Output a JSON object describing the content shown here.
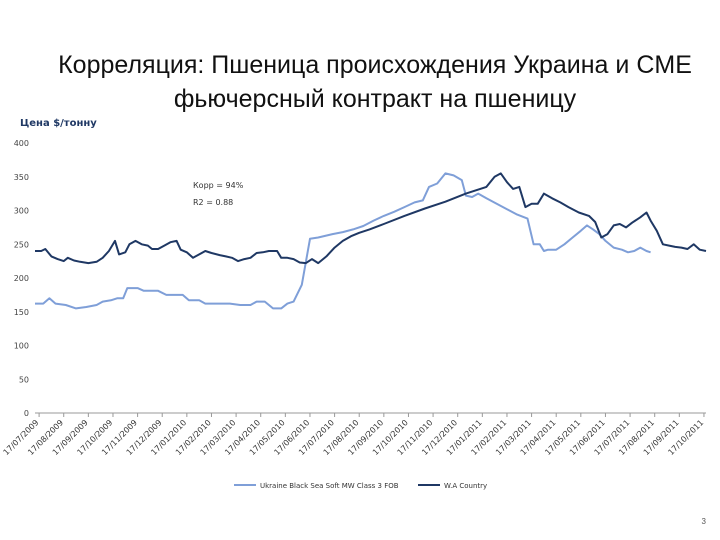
{
  "slide": {
    "title": "Корреляция: Пшеница происхождения Украина и CME фьючерсный контракт на пшеницу",
    "page_number": "3"
  },
  "chart_data": {
    "type": "line",
    "title": "",
    "ylabel": "Цена $/тонну",
    "xlabel": "",
    "ylim": [
      0,
      400
    ],
    "yticks": [
      0,
      50,
      100,
      150,
      200,
      250,
      300,
      350,
      400
    ],
    "grid": false,
    "legend_position": "bottom",
    "annotations": [
      "Корр = 94%",
      "R2 = 0.88"
    ],
    "xtick_labels": [
      "17/07/2009",
      "17/08/2009",
      "17/09/2009",
      "17/10/2009",
      "17/11/2009",
      "17/12/2009",
      "17/01/2010",
      "17/02/2010",
      "17/03/2010",
      "17/04/2010",
      "17/05/2010",
      "17/06/2010",
      "17/07/2010",
      "17/08/2010",
      "17/09/2010",
      "17/10/2010",
      "17/11/2010",
      "17/12/2010",
      "17/01/2011",
      "17/02/2011",
      "17/03/2011",
      "17/04/2011",
      "17/05/2011",
      "17/06/2011",
      "17/07/2011",
      "17/08/2011",
      "17/09/2011",
      "17/10/2011"
    ],
    "series": [
      {
        "name": "Ukraine Black Sea Soft MW Class 3 FOB",
        "color": "#7f9fd8",
        "points": [
          [
            0,
            162
          ],
          [
            0.4,
            162
          ],
          [
            0.7,
            170
          ],
          [
            1.0,
            162
          ],
          [
            1.5,
            160
          ],
          [
            2.0,
            155
          ],
          [
            2.5,
            157
          ],
          [
            3.0,
            160
          ],
          [
            3.3,
            165
          ],
          [
            3.7,
            167
          ],
          [
            4.0,
            170
          ],
          [
            4.3,
            170
          ],
          [
            4.5,
            185
          ],
          [
            5.0,
            185
          ],
          [
            5.3,
            181
          ],
          [
            5.7,
            181
          ],
          [
            6.0,
            181
          ],
          [
            6.4,
            175
          ],
          [
            6.8,
            175
          ],
          [
            7.2,
            175
          ],
          [
            7.5,
            167
          ],
          [
            8.0,
            167
          ],
          [
            8.3,
            162
          ],
          [
            8.7,
            162
          ],
          [
            9.0,
            162
          ],
          [
            9.5,
            162
          ],
          [
            10.0,
            160
          ],
          [
            10.5,
            160
          ],
          [
            10.8,
            165
          ],
          [
            11.2,
            165
          ],
          [
            11.6,
            155
          ],
          [
            12.0,
            155
          ],
          [
            12.3,
            162
          ],
          [
            12.6,
            165
          ],
          [
            13.0,
            190
          ],
          [
            13.4,
            258
          ],
          [
            13.8,
            260
          ],
          [
            14.5,
            265
          ],
          [
            15.0,
            268
          ],
          [
            15.5,
            272
          ],
          [
            16.0,
            277
          ],
          [
            16.5,
            285
          ],
          [
            17.0,
            292
          ],
          [
            17.5,
            298
          ],
          [
            18.0,
            305
          ],
          [
            18.5,
            312
          ],
          [
            18.9,
            315
          ],
          [
            19.2,
            335
          ],
          [
            19.6,
            340
          ],
          [
            20.0,
            355
          ],
          [
            20.4,
            352
          ],
          [
            20.8,
            345
          ],
          [
            21.0,
            322
          ],
          [
            21.3,
            320
          ],
          [
            21.6,
            325
          ],
          [
            22.0,
            318
          ],
          [
            22.5,
            310
          ],
          [
            23.0,
            302
          ],
          [
            23.5,
            294
          ],
          [
            24.0,
            288
          ],
          [
            24.3,
            250
          ],
          [
            24.6,
            250
          ],
          [
            24.8,
            240
          ],
          [
            25.0,
            242
          ],
          [
            25.4,
            242
          ],
          [
            25.8,
            250
          ],
          [
            26.2,
            260
          ],
          [
            26.6,
            270
          ],
          [
            26.9,
            278
          ],
          [
            27.2,
            272
          ],
          [
            27.5,
            265
          ],
          [
            27.8,
            255
          ],
          [
            28.2,
            245
          ],
          [
            28.6,
            242
          ],
          [
            28.9,
            238
          ],
          [
            29.2,
            240
          ],
          [
            29.5,
            245
          ],
          [
            29.8,
            240
          ],
          [
            30.0,
            238
          ]
        ]
      },
      {
        "name": "W.A Country",
        "color": "#1f3864",
        "points": [
          [
            0,
            240
          ],
          [
            0.3,
            240
          ],
          [
            0.5,
            243
          ],
          [
            0.8,
            232
          ],
          [
            1.1,
            228
          ],
          [
            1.4,
            225
          ],
          [
            1.6,
            230
          ],
          [
            1.9,
            226
          ],
          [
            2.2,
            224
          ],
          [
            2.6,
            222
          ],
          [
            3.0,
            224
          ],
          [
            3.3,
            230
          ],
          [
            3.6,
            240
          ],
          [
            3.9,
            255
          ],
          [
            4.1,
            235
          ],
          [
            4.4,
            238
          ],
          [
            4.6,
            250
          ],
          [
            4.9,
            255
          ],
          [
            5.2,
            250
          ],
          [
            5.5,
            248
          ],
          [
            5.7,
            243
          ],
          [
            6.0,
            243
          ],
          [
            6.3,
            248
          ],
          [
            6.6,
            253
          ],
          [
            6.9,
            255
          ],
          [
            7.1,
            242
          ],
          [
            7.4,
            238
          ],
          [
            7.7,
            230
          ],
          [
            8.0,
            235
          ],
          [
            8.3,
            240
          ],
          [
            8.6,
            237
          ],
          [
            9.0,
            234
          ],
          [
            9.3,
            232
          ],
          [
            9.6,
            230
          ],
          [
            9.9,
            225
          ],
          [
            10.2,
            228
          ],
          [
            10.5,
            230
          ],
          [
            10.8,
            237
          ],
          [
            11.1,
            238
          ],
          [
            11.4,
            240
          ],
          [
            11.8,
            240
          ],
          [
            12.0,
            230
          ],
          [
            12.3,
            230
          ],
          [
            12.6,
            228
          ],
          [
            12.9,
            223
          ],
          [
            13.2,
            222
          ],
          [
            13.5,
            228
          ],
          [
            13.8,
            222
          ],
          [
            14.2,
            232
          ],
          [
            14.6,
            245
          ],
          [
            15.0,
            255
          ],
          [
            15.4,
            262
          ],
          [
            15.8,
            267
          ],
          [
            16.3,
            272
          ],
          [
            17.0,
            280
          ],
          [
            18.0,
            292
          ],
          [
            19.0,
            303
          ],
          [
            20.0,
            313
          ],
          [
            21.0,
            325
          ],
          [
            22.0,
            335
          ],
          [
            22.4,
            350
          ],
          [
            22.7,
            355
          ],
          [
            23.0,
            342
          ],
          [
            23.3,
            332
          ],
          [
            23.6,
            335
          ],
          [
            23.9,
            305
          ],
          [
            24.2,
            310
          ],
          [
            24.5,
            310
          ],
          [
            24.8,
            325
          ],
          [
            25.2,
            318
          ],
          [
            25.6,
            312
          ],
          [
            26.0,
            305
          ],
          [
            26.5,
            297
          ],
          [
            27.0,
            292
          ],
          [
            27.3,
            283
          ],
          [
            27.6,
            260
          ],
          [
            27.9,
            265
          ],
          [
            28.2,
            278
          ],
          [
            28.5,
            280
          ],
          [
            28.8,
            275
          ],
          [
            29.1,
            282
          ],
          [
            29.5,
            290
          ],
          [
            29.8,
            297
          ],
          [
            30.0,
            285
          ],
          [
            30.3,
            270
          ],
          [
            30.6,
            250
          ],
          [
            30.9,
            248
          ],
          [
            31.2,
            246
          ],
          [
            31.5,
            245
          ],
          [
            31.8,
            243
          ],
          [
            32.1,
            250
          ],
          [
            32.4,
            242
          ],
          [
            32.7,
            240
          ]
        ]
      }
    ]
  }
}
